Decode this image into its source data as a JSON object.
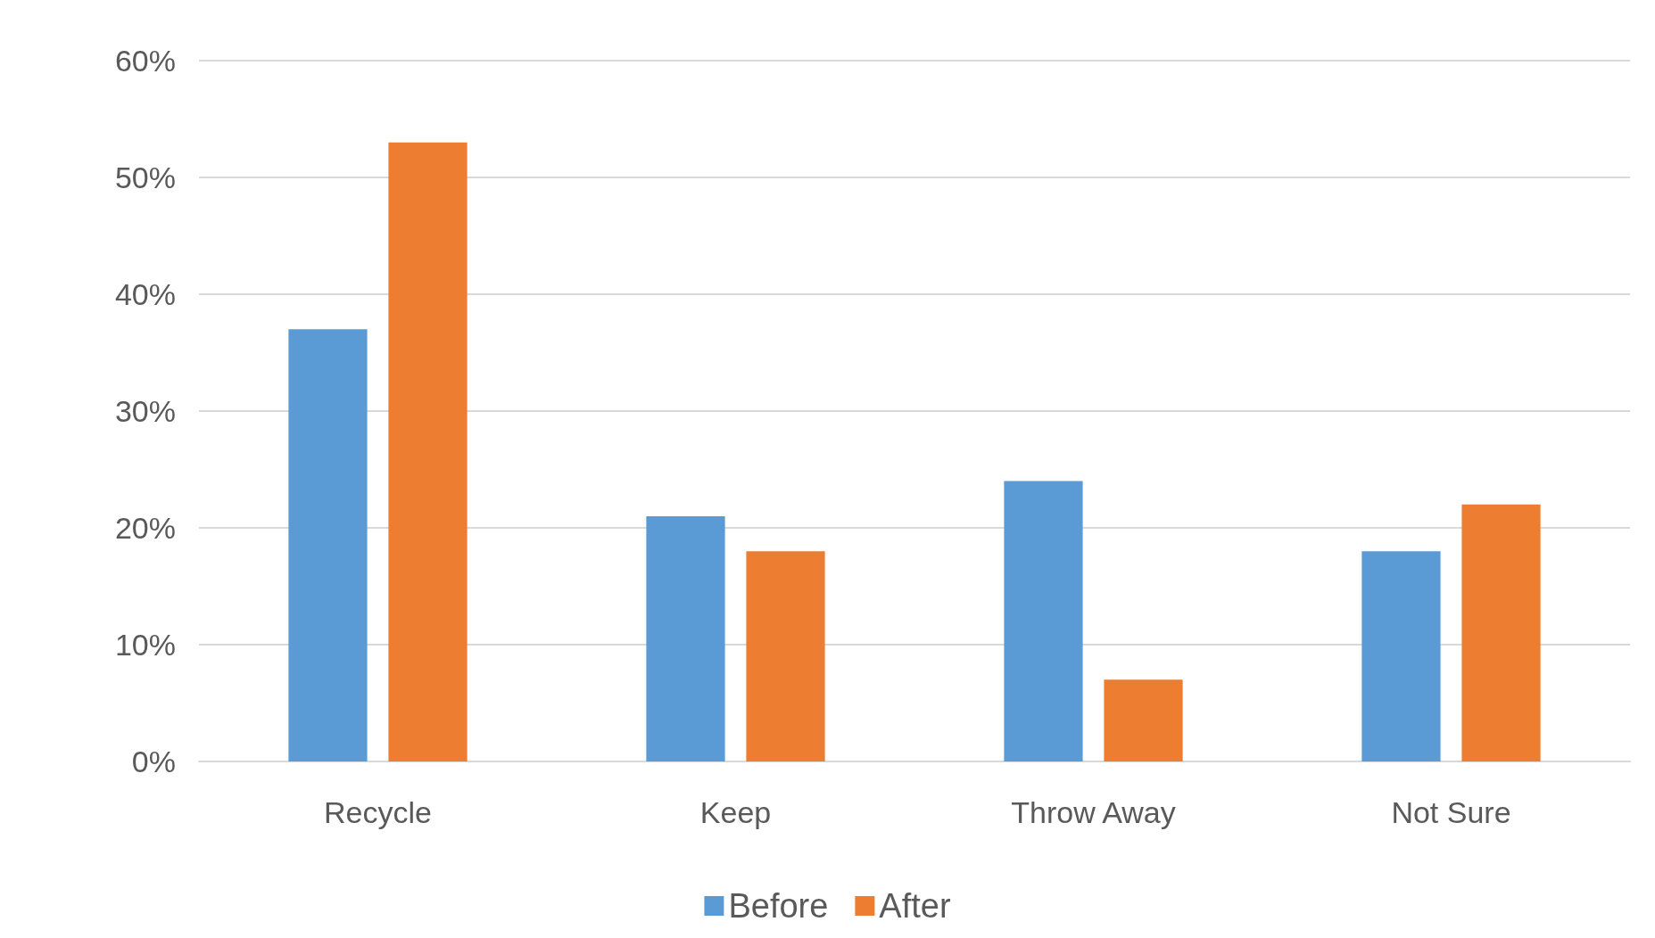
{
  "chart_data": {
    "type": "bar",
    "categories": [
      "Recycle",
      "Keep",
      "Throw Away",
      "Not Sure"
    ],
    "series": [
      {
        "name": "Before",
        "color": "#5b9bd5",
        "values": [
          37,
          21,
          24,
          18
        ]
      },
      {
        "name": "After",
        "color": "#ed7d31",
        "values": [
          53,
          18,
          7,
          22
        ]
      }
    ],
    "ylim": [
      0,
      60
    ],
    "yticks": [
      {
        "value": 0,
        "label": "0%"
      },
      {
        "value": 10,
        "label": "10%"
      },
      {
        "value": 20,
        "label": "20%"
      },
      {
        "value": 30,
        "label": "30%"
      },
      {
        "value": 40,
        "label": "40%"
      },
      {
        "value": 50,
        "label": "50%"
      },
      {
        "value": 60,
        "label": "60%"
      }
    ],
    "grid": "y",
    "legend": "bottom"
  }
}
